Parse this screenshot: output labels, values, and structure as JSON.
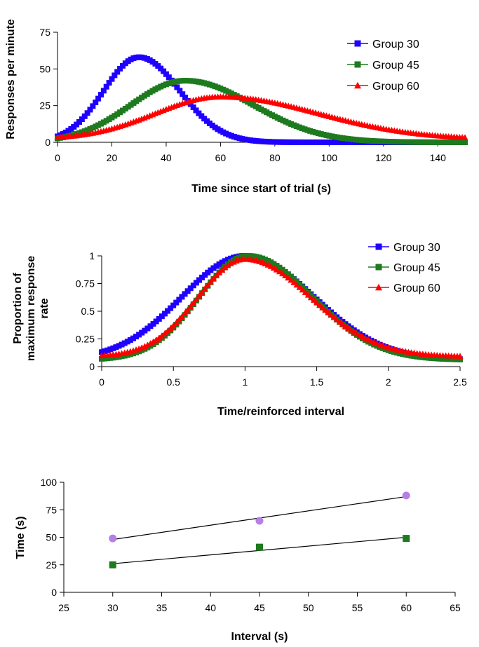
{
  "chart_data": [
    {
      "type": "scatter",
      "title": "",
      "xlabel": "Time since start of trial (s)",
      "ylabel": "Responses per minute",
      "xlim": [
        0,
        150
      ],
      "ylim": [
        0,
        75
      ],
      "xticks": [
        0,
        20,
        40,
        60,
        80,
        100,
        120,
        140
      ],
      "yticks": [
        0,
        25,
        50,
        75
      ],
      "legend_position": "top-right",
      "series": [
        {
          "name": "Group 30",
          "color": "#1f00ff",
          "marker": "square",
          "peak_x": 30,
          "peak_y": 58,
          "sigma_left": 13,
          "sigma_right": 15,
          "baseline": 0
        },
        {
          "name": "Group 45",
          "color": "#1e7a1e",
          "marker": "square",
          "peak_x": 47,
          "peak_y": 42,
          "sigma_left": 20,
          "sigma_right": 25,
          "baseline": 0
        },
        {
          "name": "Group 60",
          "color": "#ff0000",
          "marker": "triangle",
          "peak_x": 60,
          "peak_y": 31,
          "sigma_left": 24,
          "sigma_right": 36,
          "baseline": 2
        }
      ]
    },
    {
      "type": "scatter",
      "title": "",
      "xlabel": "Time/reinforced interval",
      "ylabel": "Proportion of maximum response rate",
      "xlim": [
        0,
        2.5
      ],
      "ylim": [
        0,
        1
      ],
      "xticks": [
        "0",
        "0.5",
        "1",
        "1.5",
        "2",
        "2.5"
      ],
      "yticks": [
        "0",
        "0.25",
        "0.5",
        "0.75",
        "1"
      ],
      "legend_position": "top-right",
      "series": [
        {
          "name": "Group 30",
          "color": "#1f00ff",
          "marker": "square",
          "peak_x": 1.0,
          "peak_y": 1.0,
          "sigma_left": 0.44,
          "sigma_right": 0.48,
          "baseline": 0.06
        },
        {
          "name": "Group 45",
          "color": "#1e7a1e",
          "marker": "square",
          "peak_x": 1.02,
          "peak_y": 1.0,
          "sigma_left": 0.34,
          "sigma_right": 0.45,
          "baseline": 0.06
        },
        {
          "name": "Group 60",
          "color": "#ff0000",
          "marker": "triangle",
          "peak_x": 1.0,
          "peak_y": 0.97,
          "sigma_left": 0.33,
          "sigma_right": 0.46,
          "baseline": 0.09
        }
      ]
    },
    {
      "type": "scatter",
      "title": "",
      "xlabel": "Interval (s)",
      "ylabel": "Time (s)",
      "xlim": [
        25,
        65
      ],
      "ylim": [
        0,
        100
      ],
      "xticks": [
        25,
        30,
        35,
        40,
        45,
        50,
        55,
        60,
        65
      ],
      "yticks": [
        0,
        25,
        50,
        75,
        100
      ],
      "series": [
        {
          "color": "#b57fe8",
          "marker": "circle",
          "x": [
            30,
            45,
            60
          ],
          "y": [
            49,
            65,
            88
          ],
          "fit": [
            [
              30,
              48
            ],
            [
              60,
              87
            ]
          ]
        },
        {
          "color": "#1e7a1e",
          "marker": "square",
          "x": [
            30,
            45,
            60
          ],
          "y": [
            25,
            41,
            49
          ],
          "fit": [
            [
              30,
              26
            ],
            [
              60,
              50
            ]
          ]
        }
      ]
    }
  ]
}
